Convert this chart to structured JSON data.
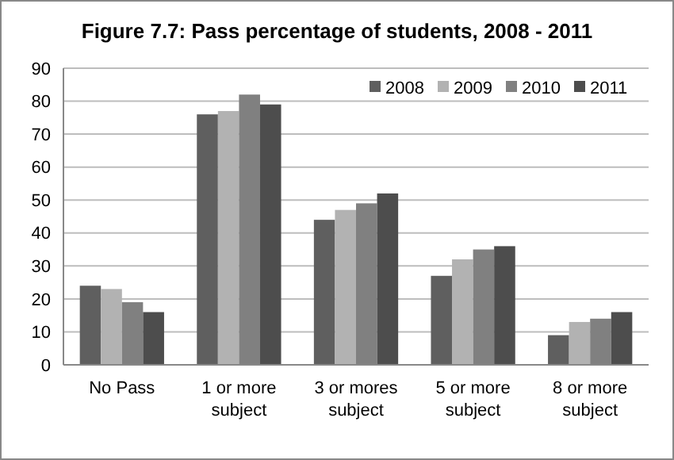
{
  "chart_data": {
    "type": "bar",
    "title": "Figure 7.7: Pass percentage of students, 2008 - 2011",
    "categories": [
      "No Pass",
      "1 or more subject",
      "3 or mores subject",
      "5 or more subject",
      "8 or more subject"
    ],
    "series": [
      {
        "name": "2008",
        "color": "#5f5f5f",
        "values": [
          24,
          76,
          44,
          27,
          9
        ]
      },
      {
        "name": "2009",
        "color": "#b2b2b2",
        "values": [
          23,
          77,
          47,
          32,
          13
        ]
      },
      {
        "name": "2010",
        "color": "#808080",
        "values": [
          19,
          82,
          49,
          35,
          14
        ]
      },
      {
        "name": "2011",
        "color": "#4d4d4d",
        "values": [
          16,
          79,
          52,
          36,
          16
        ]
      }
    ],
    "ylim": [
      0,
      90
    ],
    "yticks": [
      0,
      10,
      20,
      30,
      40,
      50,
      60,
      70,
      80,
      90
    ],
    "grid": "y",
    "legend": "top right"
  }
}
